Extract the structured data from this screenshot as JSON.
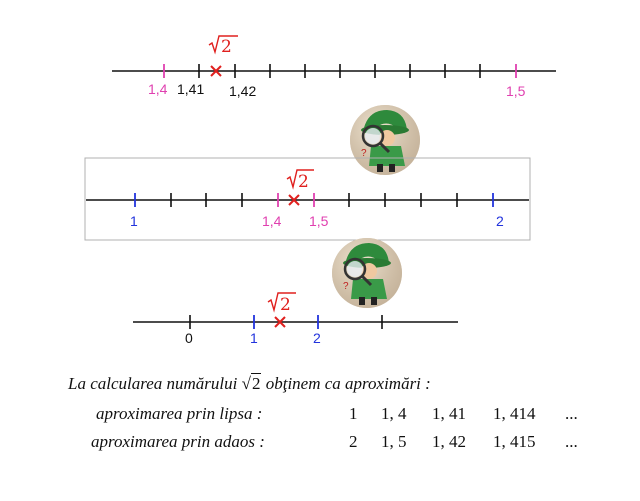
{
  "lines": [
    {
      "marks": [
        {
          "label": "1,4",
          "color": "#e040b0"
        },
        {
          "label": "1,41",
          "color": "#111111"
        },
        {
          "label": "1,42",
          "color": "#111111"
        },
        {
          "label": "1,5",
          "color": "#e040b0"
        }
      ]
    },
    {
      "marks": [
        {
          "label": "1",
          "color": "#2233dd"
        },
        {
          "label": "1,4",
          "color": "#e040b0"
        },
        {
          "label": "1,5",
          "color": "#e040b0"
        },
        {
          "label": "2",
          "color": "#2233dd"
        }
      ]
    },
    {
      "marks": [
        {
          "label": "0",
          "color": "#111111"
        },
        {
          "label": "1",
          "color": "#2233dd"
        },
        {
          "label": "2",
          "color": "#2233dd"
        }
      ]
    }
  ],
  "sqrt_label": "2",
  "sqrt_color": "#e0201e",
  "caption": {
    "intro_before": "La calcularea numărului",
    "intro_radicand": "2",
    "intro_after": "obţinem ca aproximări :",
    "lipsa_label": "aproximarea prin lipsa :",
    "lipsa_values": [
      "1",
      "1, 4",
      "1, 41",
      "1, 414",
      "..."
    ],
    "adaos_label": "aproximarea prin adaos :",
    "adaos_values": [
      "2",
      "1, 5",
      "1, 42",
      "1, 415",
      "..."
    ]
  }
}
